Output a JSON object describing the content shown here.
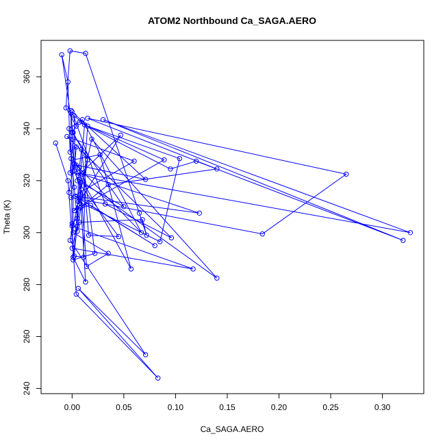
{
  "chart_data": {
    "type": "line",
    "title": "ATOM2 Northbound Ca_SAGA.AERO",
    "xlabel": "Ca_SAGA.AERO",
    "ylabel": "Theta (K)",
    "xlim": [
      -0.03,
      0.34
    ],
    "ylim": [
      238,
      374
    ],
    "x_ticks": [
      0.0,
      0.05,
      0.1,
      0.15,
      0.2,
      0.25,
      0.3
    ],
    "x_tick_labels": [
      "0.00",
      "0.05",
      "0.10",
      "0.15",
      "0.20",
      "0.25",
      "0.30"
    ],
    "y_ticks": [
      240,
      260,
      280,
      300,
      320,
      340,
      360
    ],
    "y_tick_labels": [
      "240",
      "260",
      "280",
      "300",
      "320",
      "340",
      "360"
    ],
    "grid": false,
    "series": [
      {
        "color": "#0000ff",
        "marker": "open-circle",
        "points": [
          [
            -0.016,
            334.5
          ],
          [
            -0.004,
            320.0
          ],
          [
            0.004,
            276.3
          ],
          [
            0.083,
            244.0
          ],
          [
            0.006,
            278.5
          ],
          [
            0.071,
            253.0
          ],
          [
            -0.002,
            297.0
          ],
          [
            0.019,
            336.0
          ],
          [
            0.14,
            282.5
          ],
          [
            0.007,
            320.5
          ],
          [
            0.013,
            281.0
          ],
          [
            0.001,
            290.5
          ],
          [
            0.0,
            303.5
          ],
          [
            0.005,
            305.5
          ],
          [
            0.002,
            317.5
          ],
          [
            -0.003,
            340.0
          ],
          [
            0.01,
            343.5
          ],
          [
            0.067,
            300.0
          ],
          [
            0.004,
            326.0
          ],
          [
            0.071,
            320.5
          ],
          [
            0.0,
            346.5
          ],
          [
            0.032,
            311.0
          ],
          [
            0.096,
            298.0
          ],
          [
            -0.005,
            337.0
          ],
          [
            0.06,
            327.5
          ],
          [
            -0.001,
            313.5
          ],
          [
            0.184,
            299.5
          ],
          [
            0.265,
            322.5
          ],
          [
            0.015,
            344.0
          ],
          [
            0.14,
            324.5
          ],
          [
            0.035,
            318.5
          ],
          [
            0.009,
            310.0
          ],
          [
            0.089,
            328.0
          ],
          [
            0.007,
            342.5
          ],
          [
            0.095,
            324.5
          ],
          [
            0.12,
            327.5
          ],
          [
            0.32,
            297.0
          ],
          [
            0.03,
            343.5
          ],
          [
            0.327,
            300.0
          ],
          [
            0.006,
            323.0
          ],
          [
            0.123,
            307.5
          ],
          [
            0.003,
            314.0
          ],
          [
            0.08,
            295.0
          ],
          [
            0.018,
            310.5
          ],
          [
            0.008,
            309.5
          ],
          [
            0.002,
            308.5
          ],
          [
            0.047,
            337.5
          ],
          [
            0.006,
            322.0
          ],
          [
            0.005,
            300.5
          ],
          [
            0.015,
            328.0
          ],
          [
            0.001,
            338.5
          ],
          [
            -0.01,
            368.5
          ],
          [
            -0.004,
            358.0
          ],
          [
            -0.002,
            331.0
          ],
          [
            0.004,
            333.0
          ],
          [
            0.002,
            324.0
          ],
          [
            0.011,
            314.0
          ],
          [
            0.006,
            312.0
          ],
          [
            0.085,
            296.5
          ],
          [
            0.104,
            328.5
          ],
          [
            0.015,
            341.0
          ],
          [
            0.013,
            330.0
          ],
          [
            0.011,
            290.5
          ],
          [
            0.002,
            291.0
          ],
          [
            0.01,
            322.5
          ],
          [
            -0.002,
            323.0
          ],
          [
            0.001,
            336.0
          ],
          [
            0.001,
            300.0
          ],
          [
            0.035,
            292.0
          ],
          [
            0.014,
            287.0
          ],
          [
            0.007,
            325.0
          ],
          [
            0.009,
            332.0
          ],
          [
            0.022,
            292.0
          ],
          [
            0.001,
            289.5
          ],
          [
            0.012,
            341.5
          ],
          [
            0.002,
            345.0
          ],
          [
            0.003,
            325.0
          ],
          [
            0.057,
            286.0
          ],
          [
            0.027,
            330.0
          ],
          [
            0.001,
            328.0
          ],
          [
            0.011,
            323.0
          ],
          [
            0.016,
            299.0
          ],
          [
            0.045,
            298.5
          ],
          [
            0.005,
            320.0
          ],
          [
            0.05,
            310.0
          ],
          [
            0.0,
            338.5
          ],
          [
            0.004,
            341.0
          ],
          [
            -0.006,
            348.0
          ],
          [
            -0.002,
            370.0
          ],
          [
            0.013,
            369.0
          ],
          [
            0.065,
            307.5
          ],
          [
            0.072,
            299.0
          ],
          [
            0.068,
            305.0
          ],
          [
            0.007,
            304.0
          ],
          [
            0.005,
            302.5
          ],
          [
            0.0,
            294.0
          ],
          [
            0.117,
            286.0
          ],
          [
            0.0,
            302.5
          ],
          [
            -0.001,
            328.5
          ],
          [
            -0.001,
            347.0
          ],
          [
            0.002,
            326.5
          ],
          [
            -0.003,
            315.5
          ]
        ]
      }
    ]
  }
}
